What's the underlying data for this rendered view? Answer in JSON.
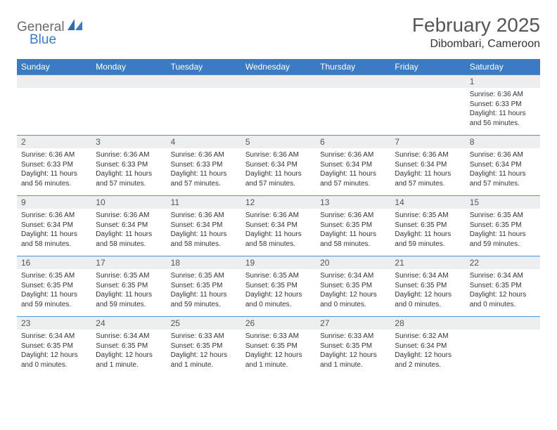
{
  "brand": {
    "text1": "General",
    "text2": "Blue",
    "color_gray": "#6b6b6b",
    "color_blue": "#3b7bc4"
  },
  "title": "February 2025",
  "location": "Dibombari, Cameroon",
  "header_bg": "#3b7bc4",
  "daynum_bg": "#eceef0",
  "border_color": "#5a8fc8",
  "days_of_week": [
    "Sunday",
    "Monday",
    "Tuesday",
    "Wednesday",
    "Thursday",
    "Friday",
    "Saturday"
  ],
  "weeks": [
    [
      {
        "n": "",
        "sunrise": "",
        "sunset": "",
        "daylight": ""
      },
      {
        "n": "",
        "sunrise": "",
        "sunset": "",
        "daylight": ""
      },
      {
        "n": "",
        "sunrise": "",
        "sunset": "",
        "daylight": ""
      },
      {
        "n": "",
        "sunrise": "",
        "sunset": "",
        "daylight": ""
      },
      {
        "n": "",
        "sunrise": "",
        "sunset": "",
        "daylight": ""
      },
      {
        "n": "",
        "sunrise": "",
        "sunset": "",
        "daylight": ""
      },
      {
        "n": "1",
        "sunrise": "Sunrise: 6:36 AM",
        "sunset": "Sunset: 6:33 PM",
        "daylight": "Daylight: 11 hours and 56 minutes."
      }
    ],
    [
      {
        "n": "2",
        "sunrise": "Sunrise: 6:36 AM",
        "sunset": "Sunset: 6:33 PM",
        "daylight": "Daylight: 11 hours and 56 minutes."
      },
      {
        "n": "3",
        "sunrise": "Sunrise: 6:36 AM",
        "sunset": "Sunset: 6:33 PM",
        "daylight": "Daylight: 11 hours and 57 minutes."
      },
      {
        "n": "4",
        "sunrise": "Sunrise: 6:36 AM",
        "sunset": "Sunset: 6:33 PM",
        "daylight": "Daylight: 11 hours and 57 minutes."
      },
      {
        "n": "5",
        "sunrise": "Sunrise: 6:36 AM",
        "sunset": "Sunset: 6:34 PM",
        "daylight": "Daylight: 11 hours and 57 minutes."
      },
      {
        "n": "6",
        "sunrise": "Sunrise: 6:36 AM",
        "sunset": "Sunset: 6:34 PM",
        "daylight": "Daylight: 11 hours and 57 minutes."
      },
      {
        "n": "7",
        "sunrise": "Sunrise: 6:36 AM",
        "sunset": "Sunset: 6:34 PM",
        "daylight": "Daylight: 11 hours and 57 minutes."
      },
      {
        "n": "8",
        "sunrise": "Sunrise: 6:36 AM",
        "sunset": "Sunset: 6:34 PM",
        "daylight": "Daylight: 11 hours and 57 minutes."
      }
    ],
    [
      {
        "n": "9",
        "sunrise": "Sunrise: 6:36 AM",
        "sunset": "Sunset: 6:34 PM",
        "daylight": "Daylight: 11 hours and 58 minutes."
      },
      {
        "n": "10",
        "sunrise": "Sunrise: 6:36 AM",
        "sunset": "Sunset: 6:34 PM",
        "daylight": "Daylight: 11 hours and 58 minutes."
      },
      {
        "n": "11",
        "sunrise": "Sunrise: 6:36 AM",
        "sunset": "Sunset: 6:34 PM",
        "daylight": "Daylight: 11 hours and 58 minutes."
      },
      {
        "n": "12",
        "sunrise": "Sunrise: 6:36 AM",
        "sunset": "Sunset: 6:34 PM",
        "daylight": "Daylight: 11 hours and 58 minutes."
      },
      {
        "n": "13",
        "sunrise": "Sunrise: 6:36 AM",
        "sunset": "Sunset: 6:35 PM",
        "daylight": "Daylight: 11 hours and 58 minutes."
      },
      {
        "n": "14",
        "sunrise": "Sunrise: 6:35 AM",
        "sunset": "Sunset: 6:35 PM",
        "daylight": "Daylight: 11 hours and 59 minutes."
      },
      {
        "n": "15",
        "sunrise": "Sunrise: 6:35 AM",
        "sunset": "Sunset: 6:35 PM",
        "daylight": "Daylight: 11 hours and 59 minutes."
      }
    ],
    [
      {
        "n": "16",
        "sunrise": "Sunrise: 6:35 AM",
        "sunset": "Sunset: 6:35 PM",
        "daylight": "Daylight: 11 hours and 59 minutes."
      },
      {
        "n": "17",
        "sunrise": "Sunrise: 6:35 AM",
        "sunset": "Sunset: 6:35 PM",
        "daylight": "Daylight: 11 hours and 59 minutes."
      },
      {
        "n": "18",
        "sunrise": "Sunrise: 6:35 AM",
        "sunset": "Sunset: 6:35 PM",
        "daylight": "Daylight: 11 hours and 59 minutes."
      },
      {
        "n": "19",
        "sunrise": "Sunrise: 6:35 AM",
        "sunset": "Sunset: 6:35 PM",
        "daylight": "Daylight: 12 hours and 0 minutes."
      },
      {
        "n": "20",
        "sunrise": "Sunrise: 6:34 AM",
        "sunset": "Sunset: 6:35 PM",
        "daylight": "Daylight: 12 hours and 0 minutes."
      },
      {
        "n": "21",
        "sunrise": "Sunrise: 6:34 AM",
        "sunset": "Sunset: 6:35 PM",
        "daylight": "Daylight: 12 hours and 0 minutes."
      },
      {
        "n": "22",
        "sunrise": "Sunrise: 6:34 AM",
        "sunset": "Sunset: 6:35 PM",
        "daylight": "Daylight: 12 hours and 0 minutes."
      }
    ],
    [
      {
        "n": "23",
        "sunrise": "Sunrise: 6:34 AM",
        "sunset": "Sunset: 6:35 PM",
        "daylight": "Daylight: 12 hours and 0 minutes."
      },
      {
        "n": "24",
        "sunrise": "Sunrise: 6:34 AM",
        "sunset": "Sunset: 6:35 PM",
        "daylight": "Daylight: 12 hours and 1 minute."
      },
      {
        "n": "25",
        "sunrise": "Sunrise: 6:33 AM",
        "sunset": "Sunset: 6:35 PM",
        "daylight": "Daylight: 12 hours and 1 minute."
      },
      {
        "n": "26",
        "sunrise": "Sunrise: 6:33 AM",
        "sunset": "Sunset: 6:35 PM",
        "daylight": "Daylight: 12 hours and 1 minute."
      },
      {
        "n": "27",
        "sunrise": "Sunrise: 6:33 AM",
        "sunset": "Sunset: 6:35 PM",
        "daylight": "Daylight: 12 hours and 1 minute."
      },
      {
        "n": "28",
        "sunrise": "Sunrise: 6:32 AM",
        "sunset": "Sunset: 6:34 PM",
        "daylight": "Daylight: 12 hours and 2 minutes."
      },
      {
        "n": "",
        "sunrise": "",
        "sunset": "",
        "daylight": ""
      }
    ]
  ]
}
